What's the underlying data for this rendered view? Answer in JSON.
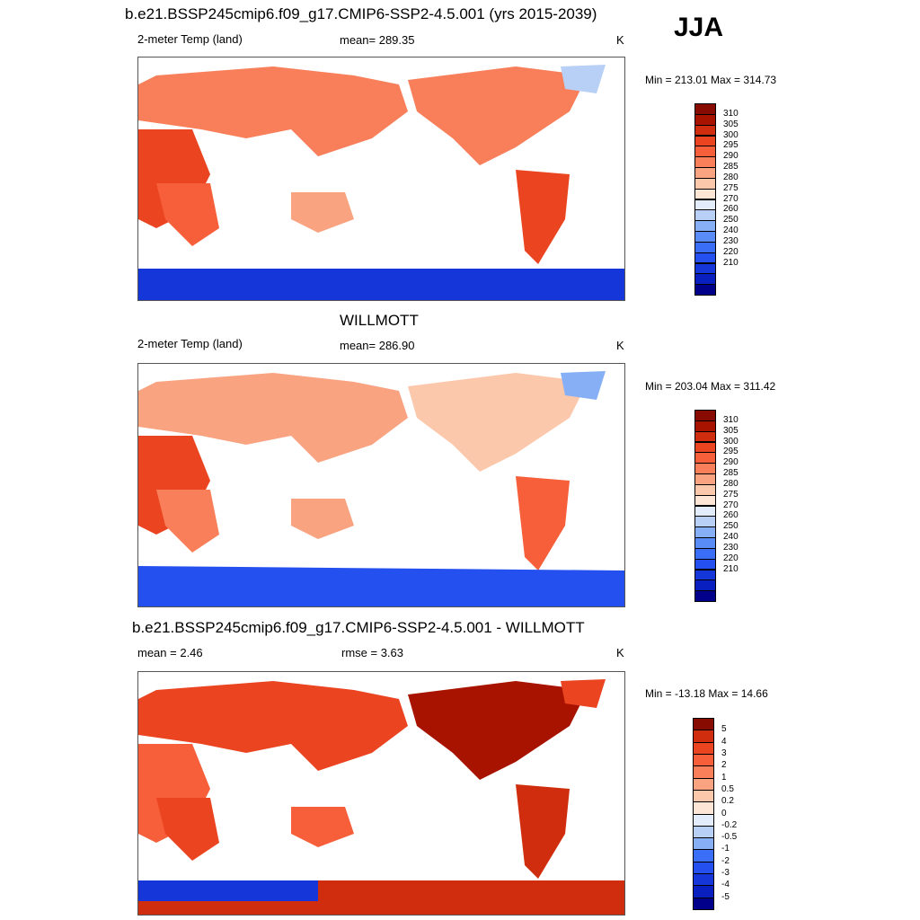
{
  "season": "JJA",
  "units": "K",
  "colors": {
    "warm_scale": [
      "#00008b",
      "#0a1fbf",
      "#1536d9",
      "#2450ef",
      "#3a6ef7",
      "#5a8cf7",
      "#87aff5",
      "#b8d0f5",
      "#e2ecfb",
      "#fde6d6",
      "#fbc8ab",
      "#f9a381",
      "#f87f5a",
      "#f65f3a",
      "#ea4420",
      "#cf2d0e",
      "#a81300",
      "#870b00"
    ],
    "diff_scale": [
      "#00008b",
      "#0a1fbf",
      "#1536d9",
      "#2450ef",
      "#3a6ef7",
      "#87aff5",
      "#b8d0f5",
      "#e2ecfb",
      "#fde6d6",
      "#fbc8ab",
      "#f9a381",
      "#f87f5a",
      "#f65f3a",
      "#ea4420",
      "#cf2d0e",
      "#870b00"
    ]
  },
  "panels": [
    {
      "title": "b.e21.BSSP245cmip6.f09_g17.CMIP6-SSP2-4.5.001 (yrs 2015-2039)",
      "variable": "2-meter Temp (land)",
      "mean_text": "mean= 289.35",
      "units": "K",
      "minmax": "Min = 213.01 Max = 314.73",
      "legend_labels": [
        "310",
        "305",
        "300",
        "295",
        "290",
        "285",
        "280",
        "275",
        "270",
        "260",
        "250",
        "240",
        "230",
        "220",
        "210"
      ]
    },
    {
      "title": "WILLMOTT",
      "variable": "2-meter Temp (land)",
      "mean_text": "mean= 286.90",
      "units": "K",
      "minmax": "Min = 203.04 Max = 311.42",
      "legend_labels": [
        "310",
        "305",
        "300",
        "295",
        "290",
        "285",
        "280",
        "275",
        "270",
        "260",
        "250",
        "240",
        "230",
        "220",
        "210"
      ]
    },
    {
      "title": "b.e21.BSSP245cmip6.f09_g17.CMIP6-SSP2-4.5.001 - WILLMOTT",
      "mean_text": "mean =   2.46",
      "rmse_text": "rmse =   3.63",
      "units": "K",
      "minmax": "Min = -13.18 Max =  14.66",
      "legend_labels": [
        "5",
        "4",
        "3",
        "2",
        "1",
        "0.5",
        "0.2",
        "0",
        "-0.2",
        "-0.5",
        "-1",
        "-2",
        "-3",
        "-4",
        "-5"
      ]
    }
  ]
}
